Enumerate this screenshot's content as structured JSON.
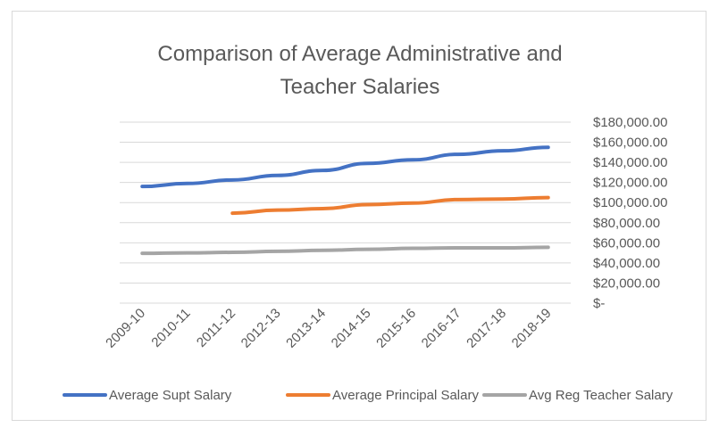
{
  "chart_data": {
    "type": "line",
    "title_line1": "Comparison of Average Administrative and",
    "title_line2": "Teacher Salaries",
    "categories": [
      "2009-10",
      "2010-11",
      "2011-12",
      "2012-13",
      "2013-14",
      "2014-15",
      "2015-16",
      "2016-17",
      "2017-18",
      "2018-19"
    ],
    "y_ticks": [
      "$-",
      "$20,000.00",
      "$40,000.00",
      "$60,000.00",
      "$80,000.00",
      "$100,000.00",
      "$120,000.00",
      "$140,000.00",
      "$160,000.00",
      "$180,000.00"
    ],
    "ylim": [
      0,
      180000
    ],
    "y_axis_side": "right",
    "grid": true,
    "legend_position": "bottom",
    "series": [
      {
        "name": "Average Supt Salary",
        "color": "#4472c4",
        "values": [
          116000,
          119000,
          122500,
          127000,
          132000,
          139000,
          142500,
          148000,
          151500,
          155000
        ]
      },
      {
        "name": "Average Principal Salary",
        "color": "#ed7d31",
        "values": [
          null,
          null,
          89500,
          92500,
          94000,
          98000,
          99500,
          103000,
          103500,
          105000
        ]
      },
      {
        "name": "Avg Reg Teacher Salary",
        "color": "#a5a5a5",
        "values": [
          49500,
          50000,
          50500,
          51500,
          52500,
          53500,
          54500,
          55000,
          55000,
          55500
        ]
      }
    ]
  }
}
